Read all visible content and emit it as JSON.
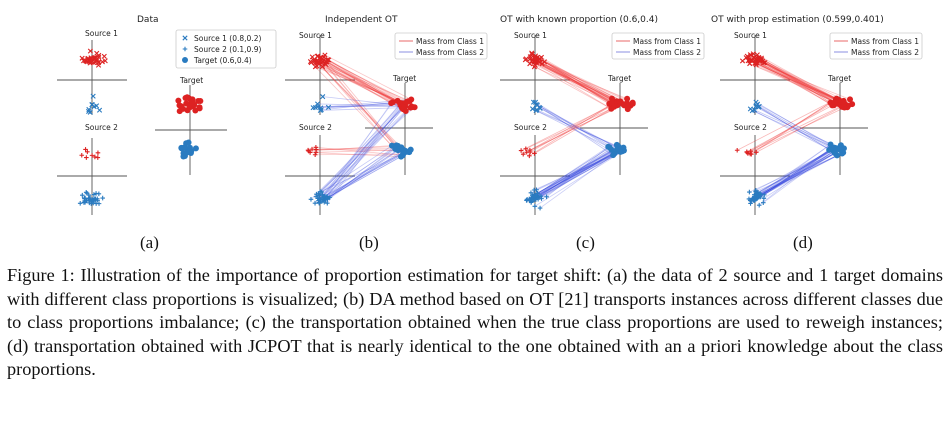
{
  "panels": [
    {
      "id": "a",
      "title": "Data",
      "sublabel": "(a)"
    },
    {
      "id": "b",
      "title": "Independent OT",
      "sublabel": "(b)"
    },
    {
      "id": "c",
      "title": "OT with known proportion (0.6,0.4)",
      "sublabel": "(c)"
    },
    {
      "id": "d",
      "title": "OT with prop estimation (0.599,0.401)",
      "sublabel": "(d)"
    }
  ],
  "labels": {
    "source1": "Source 1",
    "source2": "Source 2",
    "target": "Target"
  },
  "legend_data": [
    {
      "marker": "x",
      "label": "Source 1 (0.8,0.2)"
    },
    {
      "marker": "plus",
      "label": "Source 2 (0.1,0.9)"
    },
    {
      "marker": "dot",
      "label": "Target (0.6,0.4)"
    }
  ],
  "legend_mass": [
    {
      "label": "Mass from Class 1",
      "color": "#e8686a"
    },
    {
      "label": "Mass from Class 2",
      "color": "#8b8fe0"
    }
  ],
  "colors": {
    "class1": "#dd2222",
    "class2": "#2a7bc0",
    "line1": "#ee3333",
    "line2": "#3344dd"
  },
  "caption": "Figure 1: Illustration of the importance of proportion estimation for target shift: (a) the data of 2 source and 1 target domains with different class proportions is visualized; (b) DA method based on OT [21] transports instances across different classes due to class proportions imbalance; (c) the transportation obtained when the true class proportions are used to reweigh instances; (d) transportation obtained with JCPOT that is nearly identical to the one obtained with an a priori knowledge about the class proportions."
}
